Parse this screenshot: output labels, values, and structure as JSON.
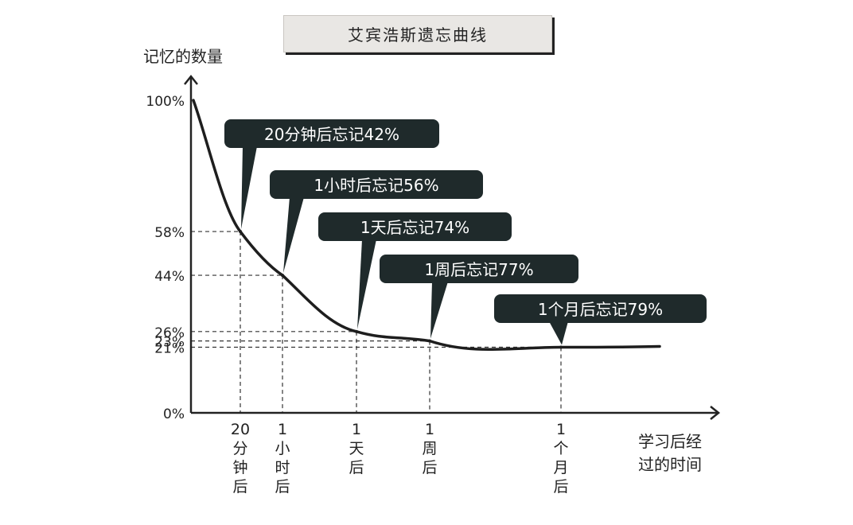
{
  "chart_data": {
    "type": "line",
    "title": "艾宾浩斯遗忘曲线",
    "ylabel": "记忆的数量",
    "xlabel": [
      "学习后经",
      "过的时间"
    ],
    "ylim": [
      0,
      100
    ],
    "y_ticks": [
      "100%",
      "58%",
      "44%",
      "26%",
      "23%",
      "21%",
      "0%"
    ],
    "y_tick_values": [
      100,
      58,
      44,
      26,
      23,
      21,
      0
    ],
    "x_ticks": [
      {
        "id": "20min",
        "chars": [
          "20",
          "分",
          "钟",
          "后"
        ]
      },
      {
        "id": "1hour",
        "chars": [
          "1",
          "小",
          "时",
          "后"
        ]
      },
      {
        "id": "1day",
        "chars": [
          "1",
          "天",
          "后"
        ]
      },
      {
        "id": "1week",
        "chars": [
          "1",
          "周",
          "后"
        ]
      },
      {
        "id": "1month",
        "chars": [
          "1",
          "个",
          "月",
          "后"
        ]
      }
    ],
    "series": [
      {
        "points": [
          {
            "x": "start",
            "y": 100
          },
          {
            "x": "20分钟后",
            "y": 58
          },
          {
            "x": "1小时后",
            "y": 44
          },
          {
            "x": "1天后",
            "y": 26
          },
          {
            "x": "1周后",
            "y": 23
          },
          {
            "x": "1个月后",
            "y": 21
          }
        ]
      }
    ],
    "annotations": [
      {
        "target": "20min",
        "text": "20分钟后忘记42%"
      },
      {
        "target": "1hour",
        "text": "1小时后忘记56%"
      },
      {
        "target": "1day",
        "text": "1天后忘记74%"
      },
      {
        "target": "1week",
        "text": "1周后忘记77%"
      },
      {
        "target": "1month",
        "text": "1个月后忘记79%"
      }
    ],
    "colors": {
      "curve": "#1e1e1e",
      "callout": "#1f2a2b",
      "callout_text": "#ffffff",
      "guide": "#333333"
    }
  }
}
